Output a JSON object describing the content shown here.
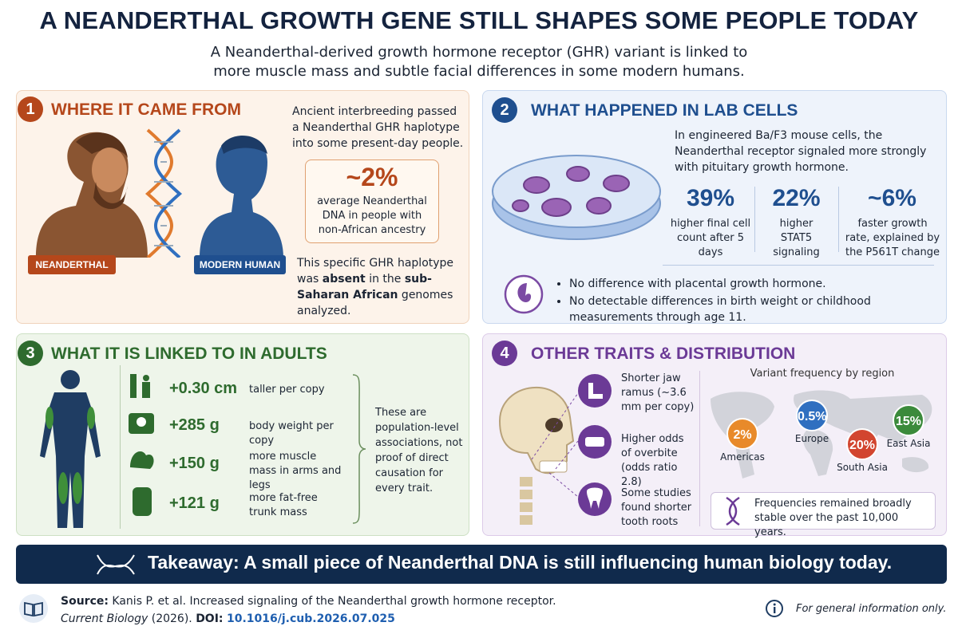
{
  "header": {
    "title": "A NEANDERTHAL GROWTH GENE STILL SHAPES SOME PEOPLE TODAY",
    "subtitle": "A Neanderthal-derived growth hormone receptor (GHR) variant is linked to more muscle mass and subtle facial differences in some modern humans."
  },
  "panel1": {
    "number": "1",
    "title": "WHERE IT CAME FROM",
    "label_left": "NEANDERTHAL",
    "label_right": "MODERN HUMAN",
    "intro": "Ancient interbreeding passed a Neanderthal GHR haplotype into some present-day people.",
    "stat_value": "~2%",
    "stat_text": "average Neanderthal DNA in people with non-African ancestry",
    "note_parts": [
      "This specific GHR haplotype was ",
      "absent",
      " in the ",
      "sub-Saharan African",
      " genomes analyzed."
    ]
  },
  "panel2": {
    "number": "2",
    "title": "WHAT HAPPENED IN LAB CELLS",
    "intro": "In engineered Ba/F3 mouse cells, the Neanderthal receptor signaled more strongly with pituitary growth hormone.",
    "stats": [
      {
        "value": "39%",
        "text": "higher final cell count after 5 days"
      },
      {
        "value": "22%",
        "text": "higher STAT5 signaling"
      },
      {
        "value": "~6%",
        "text": "faster growth rate, explained by the P561T change"
      }
    ],
    "bullets": [
      "No difference with placental growth hormone.",
      "No detectable differences in birth weight or childhood measurements through age 11."
    ]
  },
  "panel3": {
    "number": "3",
    "title": "WHAT IT IS LINKED TO IN ADULTS",
    "rows": [
      {
        "value": "+0.30 cm",
        "text": "taller per copy"
      },
      {
        "value": "+285 g",
        "text": "body weight per copy"
      },
      {
        "value": "+150 g",
        "text": "more muscle mass in arms and legs"
      },
      {
        "value": "+121 g",
        "text": "more fat-free trunk mass"
      }
    ],
    "note": "These are population-level associations, not proof of direct causation for every trait."
  },
  "panel4": {
    "number": "4",
    "title": "OTHER TRAITS & DISTRIBUTION",
    "traits": [
      "Shorter jaw ramus (~3.6 mm per copy)",
      "Higher odds of overbite (odds ratio 2.8)",
      "Some studies found shorter tooth roots"
    ],
    "map_title": "Variant frequency by region",
    "regions": [
      {
        "value": "2%",
        "name": "Americas"
      },
      {
        "value": "0.5%",
        "name": "Europe"
      },
      {
        "value": "20%",
        "name": "South Asia"
      },
      {
        "value": "15%",
        "name": "East Asia"
      }
    ],
    "footnote": "Frequencies remained broadly stable over the past 10,000 years."
  },
  "takeaway": "Takeaway: A small piece of Neanderthal DNA is still influencing human biology today.",
  "footer": {
    "source_label": "Source:",
    "source_text": "Kanis P. et al. Increased signaling of the Neanderthal growth hormone receptor.",
    "journal": "Current Biology",
    "year": " (2026). ",
    "doi_label": "DOI:",
    "doi": "10.1016/j.cub.2026.07.025",
    "disclaimer": "For general information only."
  }
}
